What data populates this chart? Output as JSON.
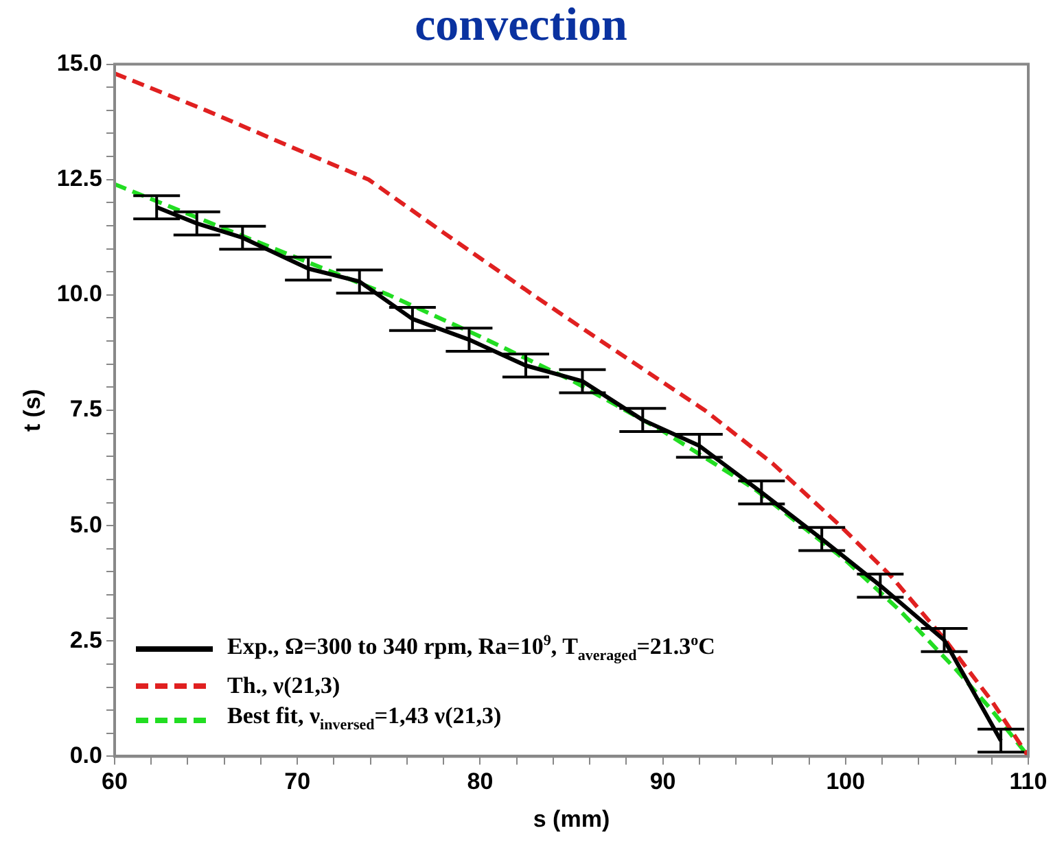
{
  "chart_data": {
    "type": "line",
    "title": "convection",
    "xlabel": "s (mm)",
    "ylabel": "t (s)",
    "xlim": [
      60,
      110
    ],
    "xticks": [
      60,
      {
        "value": 62,
        "label": null
      },
      {
        "value": 64,
        "label": null
      },
      {
        "value": 66,
        "label": null
      },
      {
        "value": 68,
        "label": null
      },
      70,
      {
        "value": 72,
        "label": null
      },
      {
        "value": 74,
        "label": null
      },
      {
        "value": 76,
        "label": null
      },
      {
        "value": 78,
        "label": null
      },
      80,
      {
        "value": 82,
        "label": null
      },
      {
        "value": 84,
        "label": null
      },
      {
        "value": 86,
        "label": null
      },
      {
        "value": 88,
        "label": null
      },
      90,
      {
        "value": 92,
        "label": null
      },
      {
        "value": 94,
        "label": null
      },
      {
        "value": 96,
        "label": null
      },
      {
        "value": 98,
        "label": null
      },
      100,
      {
        "value": 102,
        "label": null
      },
      {
        "value": 104,
        "label": null
      },
      {
        "value": 106,
        "label": null
      },
      {
        "value": 108,
        "label": null
      },
      110
    ],
    "ylim": [
      0,
      15
    ],
    "yticks": [
      {
        "value": 0,
        "label": "0.0"
      },
      {
        "value": 0.5,
        "label": null
      },
      {
        "value": 1,
        "label": null
      },
      {
        "value": 1.5,
        "label": null
      },
      {
        "value": 2,
        "label": null
      },
      {
        "value": 2.5,
        "label": "2.5"
      },
      {
        "value": 3,
        "label": null
      },
      {
        "value": 3.5,
        "label": null
      },
      {
        "value": 4,
        "label": null
      },
      {
        "value": 4.5,
        "label": null
      },
      {
        "value": 5,
        "label": "5.0"
      },
      {
        "value": 5.5,
        "label": null
      },
      {
        "value": 6,
        "label": null
      },
      {
        "value": 6.5,
        "label": null
      },
      {
        "value": 7,
        "label": null
      },
      {
        "value": 7.5,
        "label": "7.5"
      },
      {
        "value": 8,
        "label": null
      },
      {
        "value": 8.5,
        "label": null
      },
      {
        "value": 9,
        "label": null
      },
      {
        "value": 9.5,
        "label": null
      },
      {
        "value": 10,
        "label": "10.0"
      },
      {
        "value": 10.5,
        "label": null
      },
      {
        "value": 11,
        "label": null
      },
      {
        "value": 11.5,
        "label": null
      },
      {
        "value": 12,
        "label": null
      },
      {
        "value": 12.5,
        "label": "12.5"
      },
      {
        "value": 13,
        "label": null
      },
      {
        "value": 13.5,
        "label": null
      },
      {
        "value": 14,
        "label": null
      },
      {
        "value": 14.5,
        "label": null
      },
      {
        "value": 15,
        "label": "15.0"
      }
    ],
    "grid": false,
    "legend": "bottom left",
    "marker": "none",
    "series": [
      {
        "name": "Exp., Ω=300 to 340 rpm, Ra=10$^{9}$, T$_{averaged}$=21.3$^{o}$C",
        "color": "#000000",
        "line_style": "solid",
        "x": [
          62.3,
          64.5,
          67,
          70.6,
          73.4,
          76.3,
          79.4,
          82.5,
          85.6,
          88.9,
          92,
          95.4,
          98.7,
          101.9,
          105.4,
          108.5
        ],
        "values": [
          11.9,
          11.55,
          11.24,
          10.57,
          10.29,
          9.48,
          9.03,
          8.47,
          8.13,
          7.29,
          6.73,
          5.72,
          4.71,
          3.7,
          2.52,
          0.34
        ],
        "errors": [
          0.25,
          0.25,
          0.25,
          0.25,
          0.25,
          0.25,
          0.25,
          0.25,
          0.25,
          0.25,
          0.25,
          0.25,
          0.25,
          0.25,
          0.25,
          0.25
        ]
      },
      {
        "name": "Th.,  ν(21,3)",
        "color": "#e02020",
        "line_style": "dashed",
        "x": [
          60,
          65,
          70,
          73.9,
          78,
          82.9,
          87,
          92.3,
          96,
          99.7,
          102.5,
          105.5,
          108,
          110
        ],
        "values": [
          14.8,
          14.0,
          13.15,
          12.5,
          11.35,
          10,
          8.9,
          7.5,
          6.35,
          5,
          3.9,
          2.5,
          1.2,
          0
        ]
      },
      {
        "name": "Best fit, ν$_{inversed}$=1,43 ν(21,3)",
        "color": "#22dd22",
        "line_style": "dashed",
        "x": [
          60,
          65,
          70,
          75,
          80,
          85,
          90,
          95,
          100,
          103,
          106,
          108,
          110
        ],
        "values": [
          12.4,
          11.6,
          10.8,
          10,
          9.1,
          8.15,
          7.05,
          5.8,
          4.25,
          3.15,
          1.9,
          1,
          0
        ]
      }
    ]
  }
}
